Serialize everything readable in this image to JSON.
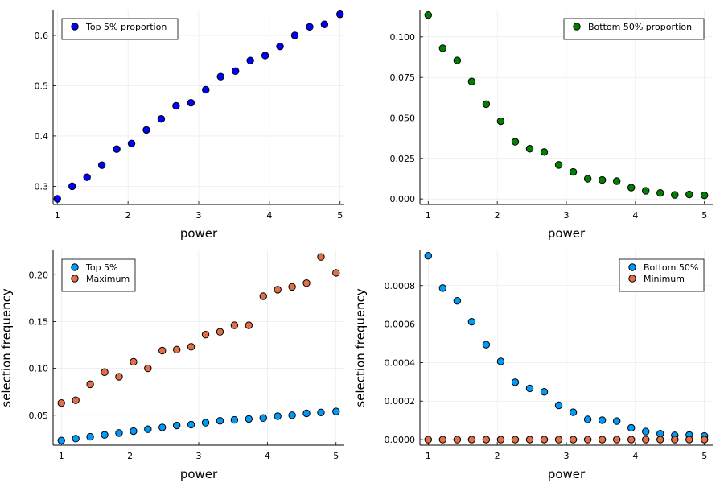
{
  "chart_data": [
    {
      "type": "scatter",
      "xlabel": "power",
      "ylabel": "",
      "xlim": [
        0.94,
        5.06
      ],
      "ylim": [
        0.2638,
        0.6512
      ],
      "xticks": [
        1,
        2,
        3,
        4,
        5
      ],
      "xtick_labels": [
        "1",
        "2",
        "3",
        "4",
        "5"
      ],
      "yticks": [
        0.3,
        0.4,
        0.5,
        0.6
      ],
      "ytick_labels": [
        "0.3",
        "0.4",
        "0.5",
        "0.6"
      ],
      "grid": true,
      "legend_position": "top-left",
      "x": [
        1.0,
        1.21,
        1.42,
        1.63,
        1.84,
        2.05,
        2.26,
        2.47,
        2.68,
        2.89,
        3.1,
        3.31,
        3.52,
        3.73,
        3.94,
        4.15,
        4.36,
        4.57,
        4.78,
        5.0
      ],
      "series": [
        {
          "name": "Top 5% proportion",
          "color": "#0000ff",
          "values": [
            0.275,
            0.3,
            0.318,
            0.342,
            0.374,
            0.385,
            0.412,
            0.434,
            0.46,
            0.466,
            0.492,
            0.518,
            0.529,
            0.55,
            0.56,
            0.578,
            0.6,
            0.617,
            0.622,
            0.642
          ]
        }
      ]
    },
    {
      "type": "scatter",
      "xlabel": "power",
      "ylabel": "",
      "xlim": [
        0.88,
        5.12
      ],
      "ylim": [
        -0.0034,
        0.1168
      ],
      "xticks": [
        1,
        2,
        3,
        4,
        5
      ],
      "xtick_labels": [
        "1",
        "2",
        "3",
        "4",
        "5"
      ],
      "yticks": [
        0.0,
        0.025,
        0.05,
        0.075,
        0.1
      ],
      "ytick_labels": [
        "0.000",
        "0.025",
        "0.050",
        "0.075",
        "0.100"
      ],
      "grid": true,
      "legend_position": "top-right",
      "x": [
        1.0,
        1.21,
        1.42,
        1.63,
        1.84,
        2.05,
        2.26,
        2.47,
        2.68,
        2.89,
        3.1,
        3.31,
        3.52,
        3.73,
        3.94,
        4.15,
        4.36,
        4.57,
        4.78,
        5.0
      ],
      "series": [
        {
          "name": "Bottom 50% proportion",
          "color": "#008000",
          "values": [
            0.1135,
            0.093,
            0.0855,
            0.0725,
            0.0585,
            0.048,
            0.0353,
            0.031,
            0.029,
            0.021,
            0.0167,
            0.0125,
            0.0117,
            0.011,
            0.007,
            0.005,
            0.0037,
            0.0025,
            0.0028,
            0.0022
          ]
        }
      ]
    },
    {
      "type": "scatter",
      "xlabel": "power",
      "ylabel": "selection frequency",
      "xlim": [
        0.88,
        5.12
      ],
      "ylim": [
        0.018,
        0.226
      ],
      "xticks": [
        1,
        2,
        3,
        4,
        5
      ],
      "xtick_labels": [
        "1",
        "2",
        "3",
        "4",
        "5"
      ],
      "yticks": [
        0.05,
        0.1,
        0.15,
        0.2
      ],
      "ytick_labels": [
        "0.05",
        "0.10",
        "0.15",
        "0.20"
      ],
      "grid": true,
      "legend_position": "top-left",
      "x": [
        1.0,
        1.21,
        1.42,
        1.63,
        1.84,
        2.05,
        2.26,
        2.47,
        2.68,
        2.89,
        3.1,
        3.31,
        3.52,
        3.73,
        3.94,
        4.15,
        4.36,
        4.57,
        4.78,
        5.0
      ],
      "series": [
        {
          "name": "Top 5%",
          "color": "#009af9",
          "values": [
            0.023,
            0.025,
            0.027,
            0.029,
            0.031,
            0.033,
            0.035,
            0.037,
            0.039,
            0.04,
            0.042,
            0.044,
            0.045,
            0.046,
            0.047,
            0.049,
            0.05,
            0.052,
            0.053,
            0.054
          ]
        },
        {
          "name": "Maximum",
          "color": "#e26f46",
          "values": [
            0.063,
            0.066,
            0.083,
            0.096,
            0.091,
            0.107,
            0.1,
            0.119,
            0.12,
            0.123,
            0.136,
            0.139,
            0.146,
            0.146,
            0.177,
            0.184,
            0.187,
            0.191,
            0.219,
            0.202
          ]
        }
      ]
    },
    {
      "type": "scatter",
      "xlabel": "power",
      "ylabel": "selection frequency",
      "xlim": [
        0.88,
        5.12
      ],
      "ylim": [
        -2.9e-05,
        0.000983
      ],
      "xticks": [
        1,
        2,
        3,
        4,
        5
      ],
      "xtick_labels": [
        "1",
        "2",
        "3",
        "4",
        "5"
      ],
      "yticks": [
        0.0,
        0.0002,
        0.0004,
        0.0006,
        0.0008
      ],
      "ytick_labels": [
        "0.0000",
        "0.0002",
        "0.0004",
        "0.0006",
        "0.0008"
      ],
      "grid": true,
      "legend_position": "top-right",
      "x": [
        1.0,
        1.21,
        1.42,
        1.63,
        1.84,
        2.05,
        2.26,
        2.47,
        2.68,
        2.89,
        3.1,
        3.31,
        3.52,
        3.73,
        3.94,
        4.15,
        4.36,
        4.57,
        4.78,
        5.0
      ],
      "series": [
        {
          "name": "Bottom 50%",
          "color": "#009af9",
          "values": [
            0.000955,
            0.000787,
            0.000721,
            0.000612,
            0.000493,
            0.000406,
            0.000298,
            0.000266,
            0.000248,
            0.000178,
            0.000142,
            0.000105,
            0.000101,
            9.6e-05,
            6.1e-05,
            4.2e-05,
            3.1e-05,
            2.2e-05,
            2.4e-05,
            1.9e-05
          ]
        },
        {
          "name": "Minimum",
          "color": "#e26f46",
          "values": [
            0,
            0,
            0,
            0,
            0,
            0,
            0,
            0,
            0,
            0,
            0,
            0,
            0,
            0,
            0,
            0,
            0,
            0,
            0,
            0
          ]
        }
      ]
    }
  ]
}
